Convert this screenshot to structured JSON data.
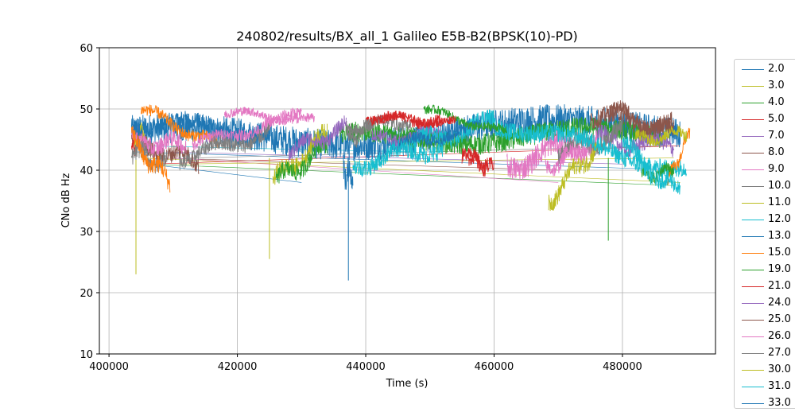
{
  "chart_data": {
    "type": "line",
    "title": "240802/results/BX_all_1 Galileo E5B-B2(BPSK(10)-PD)",
    "xlabel": "Time (s)",
    "ylabel": "CNo dB Hz",
    "xlim": [
      398500,
      494500
    ],
    "ylim": [
      10,
      60
    ],
    "xticks": [
      400000,
      420000,
      440000,
      460000,
      480000
    ],
    "yticks": [
      10,
      20,
      30,
      40,
      50,
      60
    ],
    "grid": true,
    "legend_position": "right",
    "series": [
      {
        "name": "2.0",
        "color": "#1f77b4",
        "segments": [
          [
            403500,
            489000,
            45,
            47,
            5.0
          ],
          [
            436500,
            438000,
            40,
            39,
            4.0
          ]
        ],
        "spikes": [
          [
            437300,
            22
          ]
        ]
      },
      {
        "name": "3.0",
        "color": "#bcbd22",
        "segments": [
          [
            403500,
            406000,
            46,
            45,
            3.0
          ]
        ],
        "spikes": [
          [
            404200,
            23
          ]
        ]
      },
      {
        "name": "4.0",
        "color": "#2ca02c",
        "segments": [
          [
            436000,
            486000,
            45,
            46,
            3.5
          ]
        ],
        "spikes": [
          [
            477800,
            28.5
          ]
        ]
      },
      {
        "name": "5.0",
        "color": "#d62728",
        "segments": [
          [
            403500,
            404500,
            44,
            44,
            2.0
          ],
          [
            440000,
            452000,
            48.5,
            48,
            1.8
          ],
          [
            456000,
            459000,
            42,
            41,
            2.0
          ]
        ],
        "spikes": []
      },
      {
        "name": "7.0",
        "color": "#9467bd",
        "segments": [
          [
            441000,
            452000,
            45,
            46,
            2.0
          ],
          [
            476000,
            488000,
            45,
            44,
            3.0
          ]
        ],
        "spikes": []
      },
      {
        "name": "8.0",
        "color": "#8c564b",
        "segments": [
          [
            403500,
            414000,
            45,
            41,
            3.0
          ],
          [
            475000,
            488000,
            49,
            47,
            3.0
          ]
        ],
        "spikes": []
      },
      {
        "name": "9.0",
        "color": "#e377c2",
        "segments": [
          [
            403500,
            412000,
            45,
            44,
            3.0
          ],
          [
            418000,
            432000,
            49.5,
            48,
            1.5
          ],
          [
            462000,
            476000,
            41,
            45,
            4.0
          ]
        ],
        "spikes": []
      },
      {
        "name": "10.0",
        "color": "#7f7f7f",
        "segments": [
          [
            403500,
            409000,
            43,
            41,
            3.0
          ],
          [
            437000,
            447000,
            47,
            48,
            2.0
          ],
          [
            470000,
            480000,
            43,
            46,
            3.0
          ]
        ],
        "spikes": []
      },
      {
        "name": "11.0",
        "color": "#bcbd22",
        "segments": [
          [
            425500,
            434000,
            38,
            46,
            3.0
          ],
          [
            468500,
            476000,
            35,
            44,
            3.0
          ]
        ],
        "spikes": [
          [
            425000,
            25.5
          ]
        ]
      },
      {
        "name": "12.0",
        "color": "#17becf",
        "segments": [
          [
            447000,
            460000,
            44,
            48,
            3.0
          ],
          [
            460000,
            490000,
            48,
            40,
            3.0
          ]
        ],
        "spikes": []
      },
      {
        "name": "13.0",
        "color": "#1f77b4",
        "segments": [
          [
            403500,
            425000,
            48,
            46,
            3.0
          ],
          [
            445000,
            458000,
            44,
            47,
            2.0
          ]
        ],
        "spikes": []
      },
      {
        "name": "15.0",
        "color": "#ff7f0e",
        "segments": [
          [
            403500,
            409500,
            45,
            38,
            3.0
          ],
          [
            405000,
            417000,
            50,
            44,
            2.0
          ],
          [
            487000,
            490500,
            38,
            46,
            2.0
          ]
        ],
        "spikes": []
      },
      {
        "name": "19.0",
        "color": "#2ca02c",
        "segments": [
          [
            426000,
            434000,
            38,
            44,
            3.0
          ],
          [
            449000,
            462000,
            50,
            46,
            1.5
          ],
          [
            483000,
            488000,
            39,
            40,
            2.0
          ]
        ],
        "spikes": []
      },
      {
        "name": "21.0",
        "color": "#d62728",
        "segments": [
          [
            440000,
            454000,
            48.5,
            48,
            1.5
          ],
          [
            455000,
            460000,
            43,
            40,
            2.5
          ]
        ],
        "spikes": []
      },
      {
        "name": "24.0",
        "color": "#9467bd",
        "segments": [
          [
            428000,
            437000,
            43,
            47,
            2.5
          ]
        ],
        "spikes": []
      },
      {
        "name": "25.0",
        "color": "#8c564b",
        "segments": [
          [
            478000,
            488000,
            50,
            46,
            2.5
          ]
        ],
        "spikes": []
      },
      {
        "name": "26.0",
        "color": "#e377c2",
        "segments": [
          [
            413000,
            430000,
            44,
            49,
            2.0
          ],
          [
            468000,
            474000,
            40,
            44,
            2.5
          ]
        ],
        "spikes": []
      },
      {
        "name": "27.0",
        "color": "#7f7f7f",
        "segments": [
          [
            411000,
            425000,
            42,
            46,
            2.5
          ],
          [
            437000,
            441000,
            45,
            47,
            2.5
          ]
        ],
        "spikes": []
      },
      {
        "name": "30.0",
        "color": "#bcbd22",
        "segments": [
          [
            482000,
            490000,
            45,
            46,
            2.0
          ]
        ],
        "spikes": []
      },
      {
        "name": "31.0",
        "color": "#17becf",
        "segments": [
          [
            438000,
            452000,
            41,
            44,
            3.0
          ],
          [
            480000,
            489000,
            44,
            36,
            3.0
          ]
        ],
        "spikes": []
      },
      {
        "name": "33.0",
        "color": "#1f77b4",
        "segments": [],
        "spikes": []
      }
    ],
    "connectors": [
      [
        404000,
        43,
        490000,
        40
      ],
      [
        405000,
        42,
        489000,
        38
      ],
      [
        406000,
        41,
        488000,
        37.5
      ],
      [
        407000,
        41,
        489000,
        44
      ],
      [
        409000,
        43,
        480000,
        41
      ],
      [
        408000,
        42,
        470000,
        40
      ],
      [
        410000,
        42,
        470000,
        38
      ],
      [
        413000,
        42,
        487000,
        44
      ],
      [
        411000,
        41,
        488000,
        42
      ],
      [
        404000,
        44,
        447000,
        43
      ],
      [
        406000,
        41,
        430000,
        38
      ]
    ]
  }
}
